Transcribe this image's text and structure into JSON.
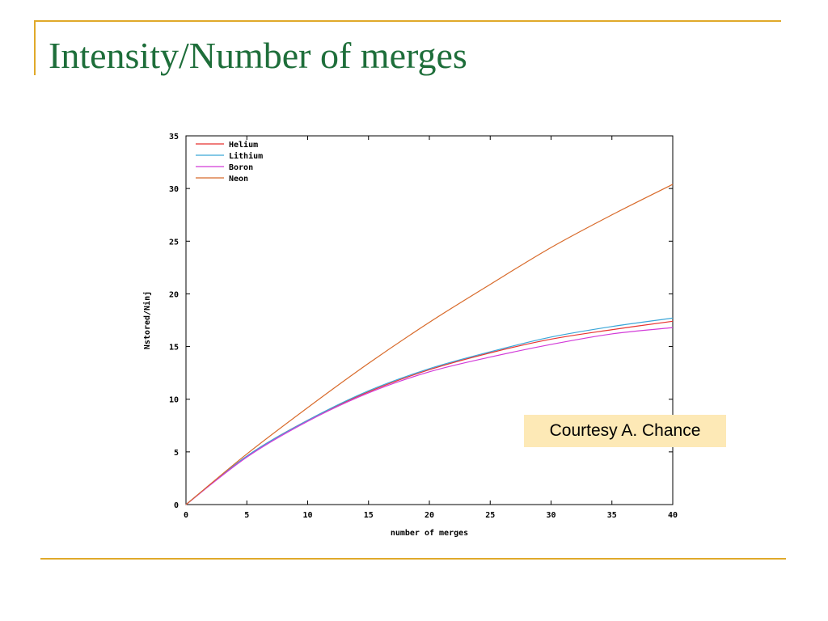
{
  "slide": {
    "title": "Intensity/Number of merges",
    "credit": "Courtesy A. Chance",
    "accent_color": "#e0a92a",
    "title_color": "#1e6e3a",
    "credit_bg": "#fde9b6"
  },
  "chart_data": {
    "type": "line",
    "title": "",
    "xlabel": "number of merges",
    "ylabel": "Nstored/Ninj",
    "xlim": [
      0,
      40
    ],
    "ylim": [
      0,
      35
    ],
    "xticks": [
      0,
      5,
      10,
      15,
      20,
      25,
      30,
      35,
      40
    ],
    "yticks": [
      0,
      5,
      10,
      15,
      20,
      25,
      30,
      35
    ],
    "grid": false,
    "legend_position": "top-left",
    "x": [
      0,
      5,
      10,
      15,
      20,
      25,
      30,
      35,
      40
    ],
    "series": [
      {
        "name": "Helium",
        "color": "#e8322f",
        "values": [
          0,
          4.6,
          8.0,
          10.7,
          12.8,
          14.4,
          15.7,
          16.6,
          17.4
        ]
      },
      {
        "name": "Lithium",
        "color": "#3aa6d8",
        "values": [
          0,
          4.6,
          8.0,
          10.8,
          12.9,
          14.5,
          15.9,
          16.9,
          17.7
        ]
      },
      {
        "name": "Boron",
        "color": "#d23ad8",
        "values": [
          0,
          4.5,
          7.9,
          10.6,
          12.6,
          14.0,
          15.2,
          16.2,
          16.8
        ]
      },
      {
        "name": "Neon",
        "color": "#d86a2a",
        "values": [
          0,
          4.8,
          9.2,
          13.4,
          17.3,
          20.9,
          24.4,
          27.5,
          30.4
        ]
      }
    ]
  }
}
